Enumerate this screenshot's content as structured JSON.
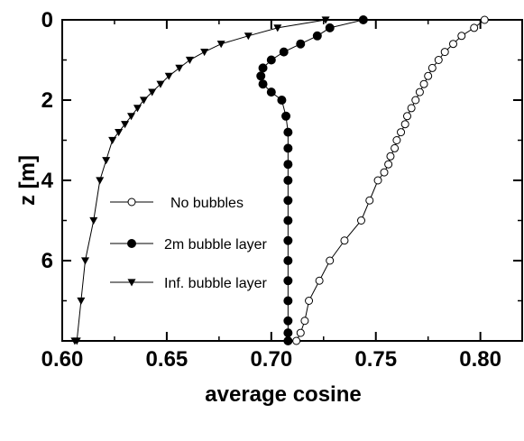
{
  "chart_data": {
    "type": "line",
    "xlabel": "average cosine",
    "ylabel": "z [m]",
    "xlim": [
      0.6,
      0.82
    ],
    "ylim": [
      0,
      8
    ],
    "y_inverted": true,
    "grid": false,
    "legend_placement": "center-left",
    "x_ticks": [
      0.6,
      0.65,
      0.7,
      0.75,
      0.8
    ],
    "x_tick_labels": [
      "0.60",
      "0.65",
      "0.70",
      "0.75",
      "0.80"
    ],
    "y_ticks": [
      0,
      2,
      4,
      6
    ],
    "y_tick_labels": [
      "0",
      "2",
      "4",
      "6"
    ],
    "series": [
      {
        "name": "No bubbles",
        "marker": "open-circle",
        "color": "#000000",
        "x": [
          0.802,
          0.797,
          0.791,
          0.787,
          0.783,
          0.78,
          0.777,
          0.775,
          0.773,
          0.771,
          0.769,
          0.767,
          0.765,
          0.764,
          0.762,
          0.76,
          0.759,
          0.757,
          0.756,
          0.754,
          0.751,
          0.747,
          0.743,
          0.735,
          0.728,
          0.723,
          0.718,
          0.716,
          0.714,
          0.712
        ],
        "y": [
          0.0,
          0.2,
          0.4,
          0.6,
          0.8,
          1.0,
          1.2,
          1.4,
          1.6,
          1.8,
          2.0,
          2.2,
          2.4,
          2.6,
          2.8,
          3.0,
          3.2,
          3.4,
          3.6,
          3.8,
          4.0,
          4.5,
          5.0,
          5.5,
          6.0,
          6.5,
          7.0,
          7.5,
          7.8,
          8.0
        ]
      },
      {
        "name": "2m bubble layer",
        "marker": "filled-circle",
        "color": "#000000",
        "x": [
          0.744,
          0.728,
          0.722,
          0.714,
          0.706,
          0.7,
          0.696,
          0.695,
          0.696,
          0.7,
          0.705,
          0.707,
          0.708,
          0.708,
          0.708,
          0.708,
          0.708,
          0.708,
          0.708,
          0.708,
          0.708,
          0.708,
          0.708,
          0.708,
          0.708
        ],
        "y": [
          0.0,
          0.2,
          0.4,
          0.6,
          0.8,
          1.0,
          1.2,
          1.4,
          1.6,
          1.8,
          2.0,
          2.4,
          2.8,
          3.2,
          3.6,
          4.0,
          4.5,
          5.0,
          5.5,
          6.0,
          6.5,
          7.0,
          7.5,
          7.8,
          8.0
        ]
      },
      {
        "name": "Inf. bubble layer",
        "marker": "filled-triangle-down",
        "color": "#000000",
        "x": [
          0.726,
          0.703,
          0.689,
          0.676,
          0.668,
          0.661,
          0.656,
          0.651,
          0.647,
          0.643,
          0.639,
          0.636,
          0.633,
          0.63,
          0.627,
          0.624,
          0.621,
          0.618,
          0.615,
          0.611,
          0.609,
          0.607,
          0.606
        ],
        "y": [
          0.0,
          0.2,
          0.4,
          0.6,
          0.8,
          1.0,
          1.2,
          1.4,
          1.6,
          1.8,
          2.0,
          2.2,
          2.4,
          2.6,
          2.8,
          3.0,
          3.5,
          4.0,
          5.0,
          6.0,
          7.0,
          8.0,
          8.0
        ]
      }
    ]
  }
}
